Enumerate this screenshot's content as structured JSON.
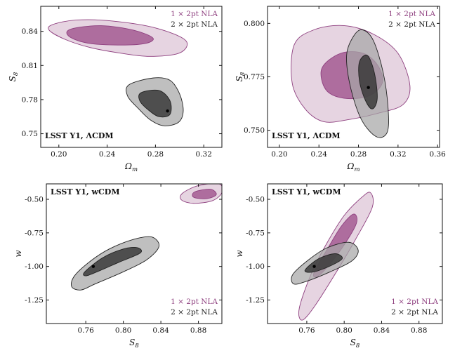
{
  "figure": {
    "colors": {
      "series1": "#8e3f7f",
      "series1_outer": "#dcc3d6",
      "series1_inner": "#a35a92",
      "series2": "#222222",
      "series2_outer": "#a6a6a6",
      "series2_inner": "#3a3a3a"
    }
  },
  "chart_data": [
    {
      "type": "contour",
      "panel": "top-left",
      "annotation": "LSST Y1, ΛCDM",
      "xlabel": "Ω",
      "xlabel_sub": "m",
      "ylabel": "S",
      "ylabel_sub": "8",
      "xlim": [
        0.185,
        0.335
      ],
      "ylim": [
        0.738,
        0.862
      ],
      "xticks": [
        "0.20",
        "0.24",
        "0.28",
        "0.32"
      ],
      "xtick_values": [
        0.2,
        0.24,
        0.28,
        0.32
      ],
      "yticks": [
        "0.75",
        "0.78",
        "0.81",
        "0.84"
      ],
      "ytick_values": [
        0.75,
        0.78,
        0.81,
        0.84
      ],
      "legend": {
        "placement": "top-right",
        "entries": [
          "1 × 2pt NLA",
          "2 × 2pt NLA"
        ]
      },
      "series": [
        {
          "outer": [
            [
              0.195,
              0.846
            ],
            [
              0.215,
              0.85
            ],
            [
              0.245,
              0.849
            ],
            [
              0.28,
              0.843
            ],
            [
              0.305,
              0.832
            ],
            [
              0.3,
              0.821
            ],
            [
              0.275,
              0.818
            ],
            [
              0.25,
              0.821
            ],
            [
              0.225,
              0.826
            ],
            [
              0.205,
              0.833
            ],
            [
              0.192,
              0.841
            ]
          ],
          "inner": [
            [
              0.21,
              0.842
            ],
            [
              0.235,
              0.845
            ],
            [
              0.262,
              0.841
            ],
            [
              0.278,
              0.834
            ],
            [
              0.27,
              0.829
            ],
            [
              0.245,
              0.828
            ],
            [
              0.222,
              0.83
            ],
            [
              0.208,
              0.836
            ]
          ]
        },
        {
          "outer": [
            [
              0.258,
              0.793
            ],
            [
              0.278,
              0.799
            ],
            [
              0.292,
              0.797
            ],
            [
              0.3,
              0.785
            ],
            [
              0.303,
              0.77
            ],
            [
              0.299,
              0.76
            ],
            [
              0.287,
              0.757
            ],
            [
              0.276,
              0.762
            ],
            [
              0.266,
              0.772
            ],
            [
              0.257,
              0.783
            ]
          ],
          "inner": [
            [
              0.268,
              0.786
            ],
            [
              0.283,
              0.788
            ],
            [
              0.292,
              0.779
            ],
            [
              0.292,
              0.767
            ],
            [
              0.283,
              0.765
            ],
            [
              0.274,
              0.771
            ],
            [
              0.267,
              0.779
            ]
          ],
          "best_fit": [
            0.29,
            0.77
          ]
        }
      ]
    },
    {
      "type": "contour",
      "panel": "top-right",
      "annotation": "LSST Y1, ΛCDM",
      "xlabel": "Ω",
      "xlabel_sub": "m",
      "ylabel": "S",
      "ylabel_sub": "8",
      "xlim": [
        0.188,
        0.362
      ],
      "ylim": [
        0.742,
        0.808
      ],
      "xticks": [
        "0.20",
        "0.24",
        "0.28",
        "0.32",
        "0.36"
      ],
      "xtick_values": [
        0.2,
        0.24,
        0.28,
        0.32,
        0.36
      ],
      "yticks": [
        "0.750",
        "0.775",
        "0.800"
      ],
      "ytick_values": [
        0.75,
        0.775,
        0.8
      ],
      "legend": {
        "placement": "top-right",
        "entries": [
          "1 × 2pt NLA",
          "2 × 2pt NLA"
        ]
      },
      "series": [
        {
          "outer": [
            [
              0.215,
              0.79
            ],
            [
              0.235,
              0.797
            ],
            [
              0.265,
              0.799
            ],
            [
              0.295,
              0.795
            ],
            [
              0.32,
              0.786
            ],
            [
              0.332,
              0.771
            ],
            [
              0.325,
              0.762
            ],
            [
              0.3,
              0.758
            ],
            [
              0.27,
              0.755
            ],
            [
              0.245,
              0.754
            ],
            [
              0.226,
              0.76
            ],
            [
              0.213,
              0.772
            ]
          ],
          "inner": [
            [
              0.243,
              0.779
            ],
            [
              0.262,
              0.786
            ],
            [
              0.285,
              0.786
            ],
            [
              0.3,
              0.78
            ],
            [
              0.304,
              0.772
            ],
            [
              0.29,
              0.766
            ],
            [
              0.265,
              0.765
            ],
            [
              0.247,
              0.769
            ]
          ],
          "best_fit": [
            0.29,
            0.77
          ]
        },
        {
          "outer": [
            [
              0.275,
              0.794
            ],
            [
              0.284,
              0.797
            ],
            [
              0.295,
              0.792
            ],
            [
              0.305,
              0.777
            ],
            [
              0.31,
              0.76
            ],
            [
              0.309,
              0.749
            ],
            [
              0.298,
              0.747
            ],
            [
              0.283,
              0.755
            ],
            [
              0.272,
              0.77
            ],
            [
              0.268,
              0.785
            ]
          ],
          "inner": [
            [
              0.281,
              0.782
            ],
            [
              0.289,
              0.785
            ],
            [
              0.296,
              0.777
            ],
            [
              0.299,
              0.765
            ],
            [
              0.294,
              0.76
            ],
            [
              0.287,
              0.764
            ],
            [
              0.281,
              0.773
            ]
          ]
        }
      ]
    },
    {
      "type": "contour",
      "panel": "bottom-left",
      "annotation": "LSST Y1, wCDM",
      "xlabel": "S",
      "xlabel_sub": "8",
      "ylabel": "w",
      "ylabel_sub": "",
      "xlim": [
        0.718,
        0.905
      ],
      "ylim": [
        -1.425,
        -0.385
      ],
      "xticks": [
        "0.76",
        "0.80",
        "0.84",
        "0.88"
      ],
      "xtick_values": [
        0.76,
        0.8,
        0.84,
        0.88
      ],
      "yticks": [
        "-1.25",
        "-1.00",
        "-0.75",
        "-0.50"
      ],
      "ytick_values": [
        -1.25,
        -1.0,
        -0.75,
        -0.5
      ],
      "legend": {
        "placement": "bottom-right",
        "entries": [
          "1 × 2pt NLA",
          "2 × 2pt NLA"
        ]
      },
      "series": [
        {
          "outer": [
            [
              0.863,
              -0.455
            ],
            [
              0.88,
              -0.398
            ],
            [
              0.902,
              -0.385
            ],
            [
              0.905,
              -0.45
            ],
            [
              0.895,
              -0.51
            ],
            [
              0.875,
              -0.53
            ],
            [
              0.862,
              -0.505
            ]
          ],
          "inner": [
            [
              0.876,
              -0.445
            ],
            [
              0.893,
              -0.425
            ],
            [
              0.899,
              -0.465
            ],
            [
              0.889,
              -0.495
            ],
            [
              0.875,
              -0.485
            ]
          ]
        },
        {
          "outer": [
            [
              0.748,
              -1.07
            ],
            [
              0.765,
              -0.96
            ],
            [
              0.785,
              -0.87
            ],
            [
              0.81,
              -0.8
            ],
            [
              0.83,
              -0.78
            ],
            [
              0.838,
              -0.85
            ],
            [
              0.825,
              -0.95
            ],
            [
              0.8,
              -1.04
            ],
            [
              0.77,
              -1.13
            ],
            [
              0.755,
              -1.175
            ],
            [
              0.745,
              -1.15
            ]
          ],
          "inner": [
            [
              0.759,
              -1.04
            ],
            [
              0.778,
              -0.935
            ],
            [
              0.8,
              -0.87
            ],
            [
              0.815,
              -0.86
            ],
            [
              0.818,
              -0.9
            ],
            [
              0.795,
              -0.97
            ],
            [
              0.772,
              -1.04
            ],
            [
              0.76,
              -1.07
            ]
          ],
          "best_fit": [
            0.768,
            -1.0
          ]
        }
      ]
    },
    {
      "type": "contour",
      "panel": "bottom-right",
      "annotation": "LSST Y1, wCDM",
      "xlabel": "S",
      "xlabel_sub": "8",
      "ylabel": "w",
      "ylabel_sub": "",
      "xlim": [
        0.718,
        0.905
      ],
      "ylim": [
        -1.425,
        -0.385
      ],
      "xticks": [
        "0.76",
        "0.80",
        "0.84",
        "0.88"
      ],
      "xtick_values": [
        0.76,
        0.8,
        0.84,
        0.88
      ],
      "yticks": [
        "-1.25",
        "-1.00",
        "-0.75",
        "-0.50"
      ],
      "ytick_values": [
        -1.25,
        -1.0,
        -0.75,
        -0.5
      ],
      "legend": {
        "placement": "bottom-right",
        "entries": [
          "1 × 2pt NLA",
          "2 × 2pt NLA"
        ]
      },
      "series": [
        {
          "outer": [
            [
              0.752,
              -1.31
            ],
            [
              0.765,
              -1.05
            ],
            [
              0.782,
              -0.82
            ],
            [
              0.8,
              -0.62
            ],
            [
              0.818,
              -0.49
            ],
            [
              0.828,
              -0.45
            ],
            [
              0.83,
              -0.56
            ],
            [
              0.812,
              -0.8
            ],
            [
              0.79,
              -1.06
            ],
            [
              0.768,
              -1.3
            ],
            [
              0.755,
              -1.4
            ]
          ],
          "inner": [
            [
              0.768,
              -1.04
            ],
            [
              0.782,
              -0.87
            ],
            [
              0.797,
              -0.7
            ],
            [
              0.81,
              -0.61
            ],
            [
              0.813,
              -0.68
            ],
            [
              0.798,
              -0.86
            ],
            [
              0.78,
              -1.02
            ],
            [
              0.77,
              -1.08
            ]
          ]
        },
        {
          "outer": [
            [
              0.745,
              -1.06
            ],
            [
              0.762,
              -0.95
            ],
            [
              0.782,
              -0.86
            ],
            [
              0.805,
              -0.82
            ],
            [
              0.815,
              -0.88
            ],
            [
              0.808,
              -0.96
            ],
            [
              0.785,
              -1.04
            ],
            [
              0.76,
              -1.11
            ],
            [
              0.746,
              -1.13
            ]
          ],
          "inner": [
            [
              0.758,
              -1.03
            ],
            [
              0.772,
              -0.945
            ],
            [
              0.79,
              -0.905
            ],
            [
              0.798,
              -0.94
            ],
            [
              0.787,
              -0.99
            ],
            [
              0.768,
              -1.04
            ]
          ],
          "best_fit": [
            0.768,
            -1.0
          ]
        }
      ]
    }
  ]
}
